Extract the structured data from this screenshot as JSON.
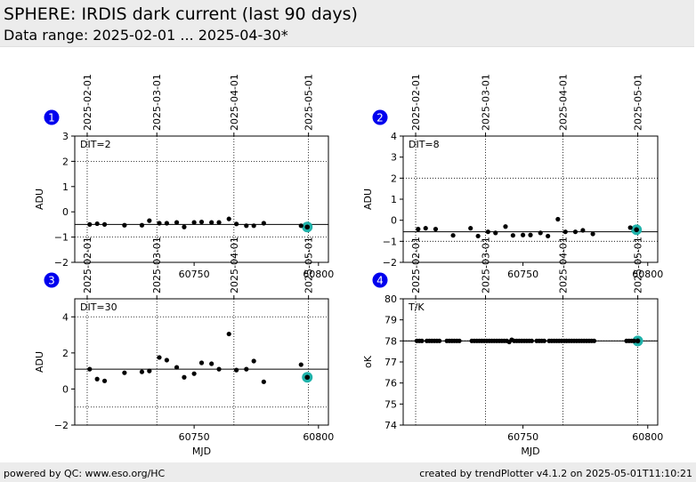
{
  "header": {
    "title": "SPHERE: IRDIS dark current (last 90 days)",
    "subtitle": "Data range: 2025-02-01 ... 2025-04-30*"
  },
  "footer": {
    "left": "powered by QC: www.eso.org/HC",
    "right": "created by trendPlotter v4.1.2 on 2025-05-01T11:10:21"
  },
  "colors": {
    "badge": "#0000ee",
    "highlight": "#20b2aa",
    "points": "#000000"
  },
  "top_axis": {
    "date_ticks": [
      {
        "mjd": 60707,
        "label": "2025-02-01"
      },
      {
        "mjd": 60735,
        "label": "2025-03-01"
      },
      {
        "mjd": 60766,
        "label": "2025-04-01"
      },
      {
        "mjd": 60796,
        "label": "2025-05-01"
      }
    ]
  },
  "chart_data": [
    {
      "type": "scatter",
      "badge": "1",
      "annotation": "DIT=2",
      "xlabel": "",
      "ylabel": "ADU",
      "xlim": [
        60702,
        60804
      ],
      "ylim": [
        -2,
        3
      ],
      "yticks": [
        -2,
        -1,
        0,
        1,
        2,
        3
      ],
      "xticks": [
        60750,
        60800
      ],
      "ref_line": -0.5,
      "dotted_hlines": [
        2.0,
        -1.0
      ],
      "vlines": [
        60707,
        60735,
        60766,
        60796
      ],
      "x": [
        60708,
        60711,
        60714,
        60722,
        60729,
        60732,
        60736,
        60739,
        60743,
        60746,
        60750,
        60753,
        60757,
        60760,
        60764,
        60767,
        60771,
        60774,
        60778,
        60793
      ],
      "y": [
        -0.5,
        -0.47,
        -0.5,
        -0.53,
        -0.53,
        -0.35,
        -0.45,
        -0.45,
        -0.42,
        -0.6,
        -0.42,
        -0.4,
        -0.42,
        -0.42,
        -0.28,
        -0.48,
        -0.55,
        -0.55,
        -0.45,
        -0.55
      ],
      "highlight": {
        "x": 60795.5,
        "y": -0.6
      }
    },
    {
      "type": "scatter",
      "badge": "2",
      "annotation": "DIT=8",
      "xlabel": "",
      "ylabel": "ADU",
      "xlim": [
        60702,
        60804
      ],
      "ylim": [
        -2,
        4
      ],
      "yticks": [
        -2,
        -1,
        0,
        1,
        2,
        3,
        4
      ],
      "xticks": [
        60750,
        60800
      ],
      "ref_line": -0.55,
      "dotted_hlines": [
        2.0,
        -1.0
      ],
      "vlines": [
        60707,
        60735,
        60766,
        60796
      ],
      "x": [
        60708,
        60711,
        60715,
        60722,
        60729,
        60732,
        60736,
        60739,
        60743,
        60746,
        60750,
        60753,
        60757,
        60760,
        60764,
        60767,
        60771,
        60774,
        60778,
        60793
      ],
      "y": [
        -0.42,
        -0.38,
        -0.42,
        -0.72,
        -0.38,
        -0.75,
        -0.55,
        -0.6,
        -0.3,
        -0.72,
        -0.7,
        -0.7,
        -0.6,
        -0.75,
        0.05,
        -0.55,
        -0.55,
        -0.48,
        -0.65,
        -0.35
      ],
      "highlight": {
        "x": 60795.5,
        "y": -0.45
      }
    },
    {
      "type": "scatter",
      "badge": "3",
      "annotation": "DIT=30",
      "xlabel": "MJD",
      "ylabel": "ADU",
      "xlim": [
        60702,
        60804
      ],
      "ylim": [
        -2,
        5
      ],
      "yticks": [
        -2,
        0,
        2,
        4
      ],
      "xticks": [
        60750,
        60800
      ],
      "ref_line": 1.1,
      "dotted_hlines": [
        4.0,
        -1.0
      ],
      "vlines": [
        60707,
        60735,
        60766,
        60796
      ],
      "x": [
        60708,
        60711,
        60714,
        60722,
        60729,
        60732,
        60736,
        60739,
        60743,
        60746,
        60750,
        60753,
        60757,
        60760,
        60764,
        60767,
        60771,
        60774,
        60778,
        60793
      ],
      "y": [
        1.1,
        0.55,
        0.45,
        0.9,
        0.95,
        1.0,
        1.75,
        1.6,
        1.2,
        0.65,
        0.85,
        1.45,
        1.4,
        1.1,
        3.05,
        1.05,
        1.1,
        1.55,
        0.4,
        1.35
      ],
      "highlight": {
        "x": 60795.5,
        "y": 0.65
      }
    },
    {
      "type": "scatter",
      "badge": "4",
      "annotation": "T/K",
      "xlabel": "MJD",
      "ylabel": "oK",
      "xlim": [
        60702,
        60804
      ],
      "ylim": [
        74,
        80
      ],
      "yticks": [
        74,
        75,
        76,
        77,
        78,
        79,
        80
      ],
      "xticks": [
        60750,
        60800
      ],
      "ref_line": 78.0,
      "dotted_hlines": [
        78.0
      ],
      "vlines": [
        60707,
        60735,
        60766,
        60796
      ],
      "x": [
        60707.5,
        60708.5,
        60709.5,
        60711.5,
        60712.5,
        60713.5,
        60714.5,
        60715.5,
        60716.5,
        60719.5,
        60720.5,
        60721.5,
        60722.5,
        60723.5,
        60724.5,
        60729.5,
        60730.5,
        60731.5,
        60732.5,
        60733.5,
        60734.5,
        60735.5,
        60736.5,
        60737.5,
        60738.5,
        60739.5,
        60740.5,
        60741.5,
        60742.5,
        60743.5,
        60744.5,
        60745.5,
        60746.5,
        60747.5,
        60748.5,
        60749.5,
        60750.5,
        60751.5,
        60752.5,
        60753.5,
        60755.5,
        60756.5,
        60757.5,
        60758.5,
        60760.5,
        60761.5,
        60762.5,
        60763.5,
        60764.5,
        60765.5,
        60766.5,
        60767.5,
        60768.5,
        60769.5,
        60770.5,
        60771.5,
        60772.5,
        60773.5,
        60774.5,
        60775.5,
        60776.5,
        60777.5,
        60778.5,
        60791.5,
        60792.5,
        60793.5,
        60794.5
      ],
      "y": [
        78,
        78,
        78,
        78,
        78,
        78,
        78,
        78,
        78,
        78,
        78,
        78,
        78,
        78,
        78,
        78,
        78,
        78,
        78,
        78,
        78,
        78,
        78,
        78,
        78,
        78,
        78,
        78,
        78,
        78,
        77.95,
        78.05,
        78,
        78,
        78,
        78,
        78,
        78,
        78,
        78,
        78,
        78,
        78,
        78,
        78,
        78,
        78,
        78,
        78,
        78,
        78,
        78,
        78,
        78,
        78,
        78,
        78,
        78,
        78,
        78,
        78,
        78,
        78,
        78,
        78,
        78,
        78
      ],
      "highlight": {
        "x": 60796,
        "y": 78.0
      }
    }
  ]
}
